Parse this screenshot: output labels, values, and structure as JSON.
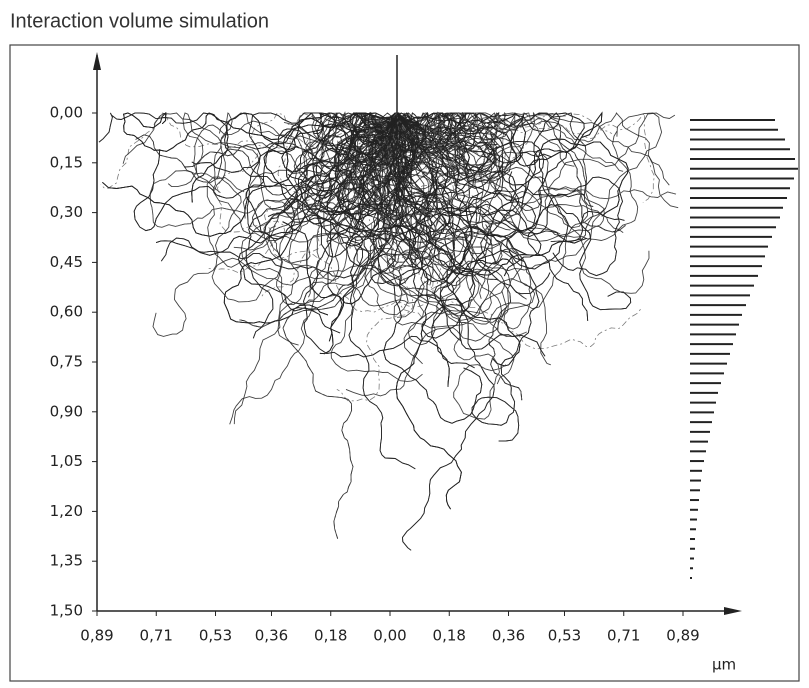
{
  "chart_data": {
    "type": "monte-carlo",
    "title": "Interaction volume simulation",
    "x_unit": "μm",
    "xlim": [
      -0.89,
      0.89
    ],
    "ylim": [
      0,
      1.5
    ],
    "xticks": [
      {
        "value": -0.89,
        "label": "0,89"
      },
      {
        "value": -0.71,
        "label": "0,71"
      },
      {
        "value": -0.53,
        "label": "0,53"
      },
      {
        "value": -0.36,
        "label": "0,36"
      },
      {
        "value": -0.18,
        "label": "0,18"
      },
      {
        "value": 0,
        "label": "0,00"
      },
      {
        "value": 0.18,
        "label": "0,18"
      },
      {
        "value": 0.36,
        "label": "0,36"
      },
      {
        "value": 0.53,
        "label": "0,53"
      },
      {
        "value": 0.71,
        "label": "0,71"
      },
      {
        "value": 0.89,
        "label": "0,89"
      }
    ],
    "yticks": [
      {
        "value": 0,
        "label": "0,00"
      },
      {
        "value": 0.15,
        "label": "0,15"
      },
      {
        "value": 0.3,
        "label": "0,30"
      },
      {
        "value": 0.45,
        "label": "0,45"
      },
      {
        "value": 0.6,
        "label": "0,60"
      },
      {
        "value": 0.75,
        "label": "0,75"
      },
      {
        "value": 0.9,
        "label": "0,90"
      },
      {
        "value": 1.05,
        "label": "1,05"
      },
      {
        "value": 1.2,
        "label": "1,20"
      },
      {
        "value": 1.35,
        "label": "1,35"
      },
      {
        "value": 1.5,
        "label": "1,50"
      }
    ],
    "depth_distribution": [
      85,
      88,
      95,
      100,
      105,
      108,
      104,
      100,
      97,
      93,
      90,
      86,
      82,
      78,
      75,
      72,
      68,
      64,
      60,
      56,
      52,
      49,
      46,
      43,
      40,
      37,
      34,
      31,
      28,
      26,
      24,
      22,
      20,
      18,
      16,
      14,
      12,
      11,
      10,
      9,
      8,
      7,
      6,
      5,
      5,
      4,
      3,
      2
    ],
    "color": "#222222"
  }
}
